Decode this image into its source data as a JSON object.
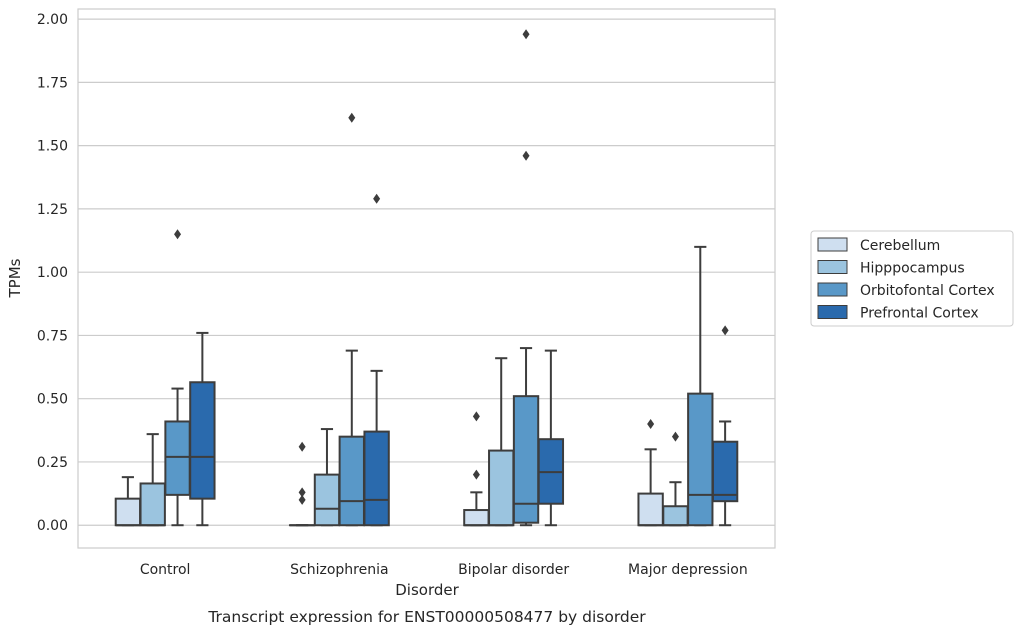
{
  "chart_data": {
    "type": "box",
    "caption": "Transcript expression for ENST00000508477 by disorder",
    "xlabel": "Disorder",
    "ylabel": "TPMs",
    "ylim": [
      -0.09,
      2.04
    ],
    "yticks": [
      "0.00",
      "0.25",
      "0.50",
      "0.75",
      "1.00",
      "1.25",
      "1.50",
      "1.75",
      "2.00"
    ],
    "grid": true,
    "legend_position": "right",
    "categories": [
      "Control",
      "Schizophrenia",
      "Bipolar disorder",
      "Major depression"
    ],
    "series": [
      {
        "name": "Cerebellum",
        "color": "#cfdff0",
        "boxes": [
          {
            "whislo": 0,
            "q1": 0,
            "med": 0,
            "q3": 0.105,
            "whishi": 0.19,
            "fliers": []
          },
          {
            "whislo": 0,
            "q1": 0,
            "med": 0,
            "q3": 0,
            "whishi": 0,
            "fliers": [
              0.1,
              0.13,
              0.31
            ]
          },
          {
            "whislo": 0,
            "q1": 0,
            "med": 0,
            "q3": 0.06,
            "whishi": 0.13,
            "fliers": [
              0.2,
              0.43
            ]
          },
          {
            "whislo": 0,
            "q1": 0,
            "med": 0,
            "q3": 0.125,
            "whishi": 0.3,
            "fliers": [
              0.4
            ]
          }
        ]
      },
      {
        "name": "Hipppocampus",
        "color": "#9bc4df",
        "boxes": [
          {
            "whislo": 0,
            "q1": 0,
            "med": 0,
            "q3": 0.165,
            "whishi": 0.36,
            "fliers": []
          },
          {
            "whislo": 0,
            "q1": 0,
            "med": 0.065,
            "q3": 0.2,
            "whishi": 0.38,
            "fliers": []
          },
          {
            "whislo": 0,
            "q1": 0,
            "med": 0,
            "q3": 0.295,
            "whishi": 0.66,
            "fliers": []
          },
          {
            "whislo": 0,
            "q1": 0,
            "med": 0,
            "q3": 0.075,
            "whishi": 0.17,
            "fliers": [
              0.35
            ]
          }
        ]
      },
      {
        "name": "Orbitofontal Cortex",
        "color": "#5998c8",
        "boxes": [
          {
            "whislo": 0,
            "q1": 0.12,
            "med": 0.27,
            "q3": 0.41,
            "whishi": 0.54,
            "fliers": [
              1.15
            ]
          },
          {
            "whislo": 0,
            "q1": 0,
            "med": 0.095,
            "q3": 0.35,
            "whishi": 0.69,
            "fliers": [
              1.61
            ]
          },
          {
            "whislo": 0,
            "q1": 0.01,
            "med": 0.085,
            "q3": 0.51,
            "whishi": 0.7,
            "fliers": [
              1.46,
              1.94
            ]
          },
          {
            "whislo": 0,
            "q1": 0,
            "med": 0.12,
            "q3": 0.52,
            "whishi": 1.1,
            "fliers": []
          }
        ]
      },
      {
        "name": "Prefrontal Cortex",
        "color": "#2a6aad",
        "boxes": [
          {
            "whislo": 0,
            "q1": 0.105,
            "med": 0.27,
            "q3": 0.565,
            "whishi": 0.76,
            "fliers": []
          },
          {
            "whislo": 0,
            "q1": 0,
            "med": 0.1,
            "q3": 0.37,
            "whishi": 0.61,
            "fliers": [
              1.29
            ]
          },
          {
            "whislo": 0,
            "q1": 0.085,
            "med": 0.21,
            "q3": 0.34,
            "whishi": 0.69,
            "fliers": []
          },
          {
            "whislo": 0,
            "q1": 0.095,
            "med": 0.12,
            "q3": 0.33,
            "whishi": 0.41,
            "fliers": [
              0.77
            ]
          }
        ]
      }
    ]
  }
}
